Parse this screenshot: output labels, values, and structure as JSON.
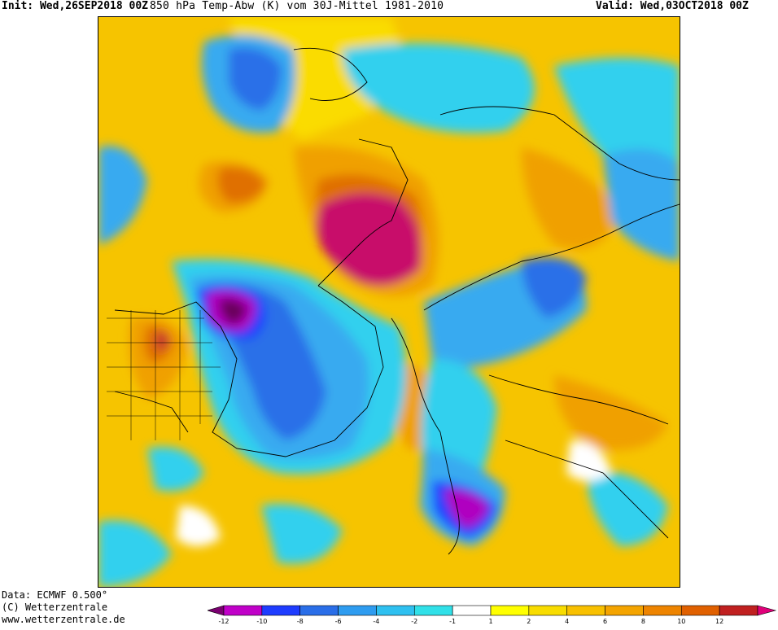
{
  "header": {
    "init": "Init: Wed,26SEP2018 00Z",
    "title": "850 hPa Temp-Abw (K) vom 30J-Mittel 1981-2010",
    "valid": "Valid: Wed,03OCT2018 00Z"
  },
  "footer": {
    "data": "Data: ECMWF  0.500°",
    "copyright": "(C) Wetterzentrale",
    "url": "www.wetterzentrale.de"
  },
  "legend": {
    "bins": [
      {
        "color": "#7a0070"
      },
      {
        "color": "#c000c8"
      },
      {
        "color": "#1e3cff"
      },
      {
        "color": "#2a6ee8"
      },
      {
        "color": "#2e9cf0"
      },
      {
        "color": "#2ec0f0"
      },
      {
        "color": "#30e0e8"
      },
      {
        "color": "#ffffff"
      },
      {
        "color": "#ffff00"
      },
      {
        "color": "#f8dc00"
      },
      {
        "color": "#f8c000"
      },
      {
        "color": "#f4a400"
      },
      {
        "color": "#ee8400"
      },
      {
        "color": "#e06000"
      },
      {
        "color": "#c02020"
      },
      {
        "color": "#e0007a"
      }
    ],
    "ticks": [
      "-12",
      "-10",
      "-8",
      "-6",
      "-4",
      "-2",
      "-1",
      "1",
      "2",
      "4",
      "6",
      "8",
      "10",
      "12"
    ]
  },
  "map": {
    "colors": {
      "background": "#f6c400",
      "warm_light": "#fadc00",
      "warm_orange": "#f0a000",
      "warm_strong": "#e07000",
      "warm_red": "#c02030",
      "warm_magenta": "#c8106a",
      "cold_cyan": "#30d0ee",
      "cold_light_blue": "#38aaf0",
      "cold_blue": "#2a70e8",
      "cold_deep_blue": "#1e40ff",
      "cold_purple": "#b000c0",
      "cold_dark_purple": "#6a005c",
      "neutral": "#ffffff"
    }
  }
}
